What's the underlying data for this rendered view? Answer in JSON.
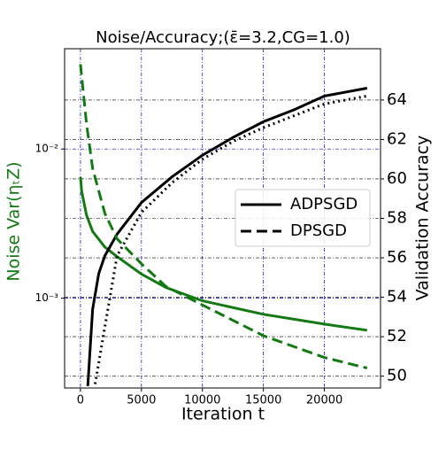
{
  "chart_data": {
    "type": "line",
    "title": "Noise/Accuracy;(ε̄=3.2,CG=1.0)",
    "x_label": "Iteration t",
    "y_label": "Noise Var(ηₜZ)",
    "y2_label": "Validation Accuracy",
    "y_scale": "log",
    "grid": true,
    "legend_position": "right",
    "noise_color": "#137a13",
    "accuracy_color": "#000000",
    "xlim": [
      -1300,
      24600
    ],
    "xticks": [
      0,
      5000,
      10000,
      15000,
      20000
    ],
    "ylim": [
      0.00025,
      0.047
    ],
    "yticks": [
      {
        "value": 0.001,
        "label": "10⁻³"
      },
      {
        "value": 0.01,
        "label": "10⁻²"
      }
    ],
    "y2lim": [
      49.4,
      66.6
    ],
    "y2ticks": [
      50,
      52,
      54,
      56,
      58,
      60,
      62,
      64
    ],
    "series": [
      {
        "name": "ADPSGD",
        "legend_dash": "solid",
        "noise_dash": "solid",
        "accuracy_dash": "solid",
        "noise_x": [
          0,
          100,
          500,
          1000,
          2000,
          3000,
          5000,
          7000,
          10000,
          15000,
          20000,
          23500
        ],
        "noise": [
          0.0065,
          0.0052,
          0.0036,
          0.0028,
          0.0022,
          0.0019,
          0.00145,
          0.00118,
          0.00096,
          0.00078,
          0.00067,
          0.00061
        ],
        "accuracy_x": [
          600,
          1000,
          1500,
          2000,
          3000,
          5000,
          7500,
          10000,
          12500,
          15000,
          17500,
          20000,
          23500
        ],
        "accuracy": [
          49.5,
          53.4,
          55.2,
          56.1,
          57.2,
          58.8,
          60.1,
          61.2,
          62.1,
          62.9,
          63.5,
          64.2,
          64.6
        ]
      },
      {
        "name": "DPSGD",
        "legend_dash": "dashed",
        "noise_dash": "dashed",
        "accuracy_dash": "dotted",
        "noise_x": [
          0,
          500,
          1000,
          2000,
          3000,
          5000,
          7000,
          10000,
          15000,
          20000,
          23500
        ],
        "noise": [
          0.037,
          0.0147,
          0.0074,
          0.0037,
          0.0025,
          0.0017,
          0.0012,
          0.0009,
          0.00056,
          0.0004,
          0.00034
        ],
        "accuracy_x": [
          1200,
          2000,
          3000,
          5000,
          7500,
          10000,
          12500,
          15000,
          17500,
          20000,
          23500
        ],
        "accuracy": [
          49.6,
          52.5,
          56.1,
          58.3,
          59.8,
          61.0,
          61.9,
          62.6,
          63.2,
          63.8,
          64.2
        ]
      }
    ]
  }
}
